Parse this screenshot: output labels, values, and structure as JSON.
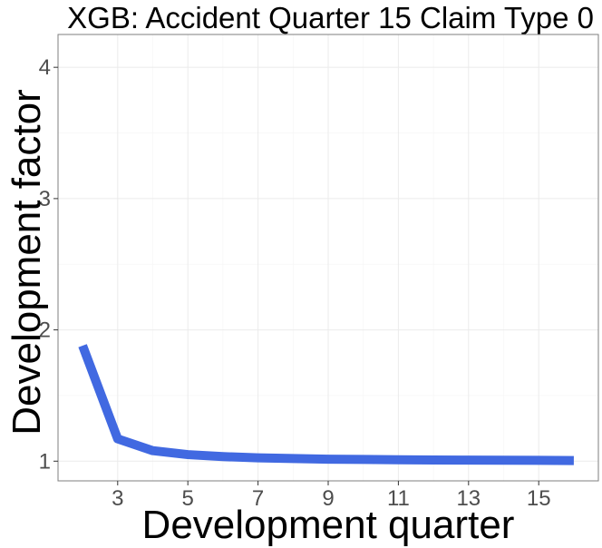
{
  "chart_data": {
    "type": "line",
    "title": "XGB: Accident Quarter 15 Claim Type 0",
    "xlabel": "Development quarter",
    "ylabel": "Development factor",
    "xlim": [
      1.3,
      16.7
    ],
    "ylim": [
      0.85,
      4.25
    ],
    "x_ticks": [
      3,
      5,
      7,
      9,
      11,
      13,
      15
    ],
    "y_ticks": [
      1,
      2,
      3,
      4
    ],
    "grid": true,
    "line_color": "#4169e1",
    "series": [
      {
        "x": [
          2,
          3,
          4,
          5,
          6,
          7,
          8,
          9,
          10,
          11,
          12,
          13,
          14,
          15,
          16
        ],
        "values": [
          1.88,
          1.17,
          1.08,
          1.05,
          1.035,
          1.025,
          1.02,
          1.015,
          1.013,
          1.011,
          1.009,
          1.008,
          1.007,
          1.006,
          1.005
        ]
      }
    ]
  }
}
